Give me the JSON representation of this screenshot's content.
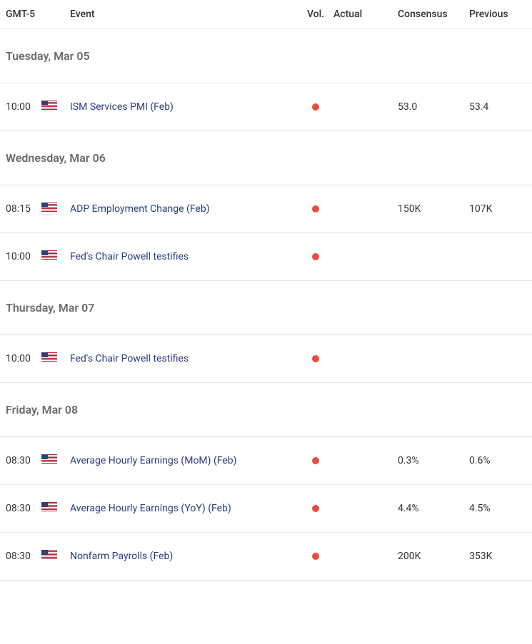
{
  "headers": {
    "time": "GMT-5",
    "event": "Event",
    "vol": "Vol.",
    "actual": "Actual",
    "consensus": "Consensus",
    "previous": "Previous"
  },
  "colors": {
    "vol_dot": "#e74c3c",
    "event_link": "#2f3a7a",
    "day_header": "#6b6b6b",
    "border": "#e5e5e5"
  },
  "days": [
    {
      "label": "Tuesday, Mar 05",
      "events": [
        {
          "time": "10:00",
          "country": "US",
          "name": "ISM Services PMI (Feb)",
          "actual": "",
          "consensus": "53.0",
          "previous": "53.4"
        }
      ]
    },
    {
      "label": "Wednesday, Mar 06",
      "events": [
        {
          "time": "08:15",
          "country": "US",
          "name": "ADP Employment Change (Feb)",
          "actual": "",
          "consensus": "150K",
          "previous": "107K"
        },
        {
          "time": "10:00",
          "country": "US",
          "name": "Fed's Chair Powell testifies",
          "actual": "",
          "consensus": "",
          "previous": ""
        }
      ]
    },
    {
      "label": "Thursday, Mar 07",
      "events": [
        {
          "time": "10:00",
          "country": "US",
          "name": "Fed's Chair Powell testifies",
          "actual": "",
          "consensus": "",
          "previous": ""
        }
      ]
    },
    {
      "label": "Friday, Mar 08",
      "events": [
        {
          "time": "08:30",
          "country": "US",
          "name": "Average Hourly Earnings (MoM) (Feb)",
          "actual": "",
          "consensus": "0.3%",
          "previous": "0.6%"
        },
        {
          "time": "08:30",
          "country": "US",
          "name": "Average Hourly Earnings (YoY) (Feb)",
          "actual": "",
          "consensus": "4.4%",
          "previous": "4.5%"
        },
        {
          "time": "08:30",
          "country": "US",
          "name": "Nonfarm Payrolls (Feb)",
          "actual": "",
          "consensus": "200K",
          "previous": "353K"
        }
      ]
    }
  ]
}
